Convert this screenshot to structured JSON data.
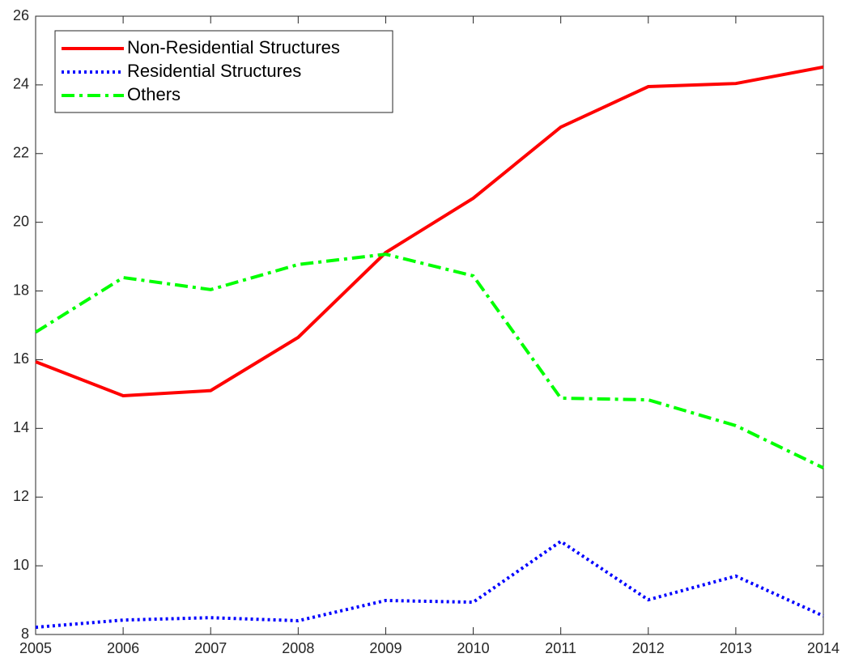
{
  "chart_data": {
    "type": "line",
    "x": [
      2005,
      2006,
      2007,
      2008,
      2009,
      2010,
      2011,
      2012,
      2013,
      2014
    ],
    "series": [
      {
        "name": "Non-Residential Structures",
        "color": "#ff0000",
        "linestyle": "solid",
        "values": [
          15.94,
          14.95,
          15.1,
          16.65,
          19.12,
          20.7,
          22.77,
          23.95,
          24.04,
          24.52
        ]
      },
      {
        "name": "Residential Structures",
        "color": "#0000ff",
        "linestyle": "dotted",
        "values": [
          8.21,
          8.42,
          8.49,
          8.4,
          8.99,
          8.94,
          10.71,
          9.01,
          9.7,
          8.54
        ]
      },
      {
        "name": "Others",
        "color": "#00ff00",
        "linestyle": "dashdot",
        "values": [
          16.8,
          18.39,
          18.04,
          18.77,
          19.07,
          18.44,
          14.88,
          14.83,
          14.08,
          12.85
        ]
      }
    ],
    "xlim": [
      2005,
      2014
    ],
    "xticks": [
      2005,
      2006,
      2007,
      2008,
      2009,
      2010,
      2011,
      2012,
      2013,
      2014
    ],
    "ylim": [
      8,
      26
    ],
    "yticks": [
      8,
      10,
      12,
      14,
      16,
      18,
      20,
      22,
      24,
      26
    ],
    "grid": false,
    "legend": "upper left"
  }
}
